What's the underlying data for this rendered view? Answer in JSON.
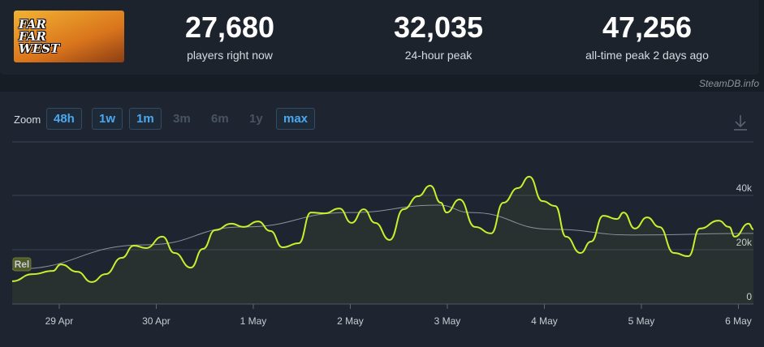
{
  "game_logo": "FAR FAR WEST",
  "stats": [
    {
      "value": "27,680",
      "label": "players right now"
    },
    {
      "value": "32,035",
      "label": "24-hour peak"
    },
    {
      "value": "47,256",
      "label": "all-time peak 2 days ago"
    }
  ],
  "brand": "SteamDB.info",
  "zoom": {
    "label": "Zoom",
    "options": [
      {
        "label": "48h",
        "enabled": true
      },
      {
        "label": "1w",
        "enabled": true
      },
      {
        "label": "1m",
        "enabled": true
      },
      {
        "label": "3m",
        "enabled": false
      },
      {
        "label": "6m",
        "enabled": false
      },
      {
        "label": "1y",
        "enabled": false
      },
      {
        "label": "max",
        "enabled": true
      }
    ]
  },
  "chart_data": {
    "type": "line",
    "xlim": [
      -0.485,
      7.155
    ],
    "ylim": [
      0,
      60000
    ],
    "xticks": [
      {
        "value": 0,
        "label": "29 Apr"
      },
      {
        "value": 1,
        "label": "30 Apr"
      },
      {
        "value": 2,
        "label": "1 May"
      },
      {
        "value": 3,
        "label": "2 May"
      },
      {
        "value": 4,
        "label": "3 May"
      },
      {
        "value": 5,
        "label": "4 May"
      },
      {
        "value": 6,
        "label": "5 May"
      },
      {
        "value": 7,
        "label": "6 May"
      }
    ],
    "yticks": [
      0,
      {
        "value": 20000,
        "label": "20k"
      },
      {
        "value": 40000,
        "label": "40k"
      }
    ],
    "grid": true,
    "annotations": [
      {
        "label": "Rel",
        "x": -0.385
      }
    ],
    "series": [
      {
        "color": "#c8f02c",
        "x": [
          -0.485,
          -0.276,
          -0.067,
          0.017,
          0.184,
          0.335,
          0.477,
          0.644,
          0.77,
          0.895,
          1.063,
          1.188,
          1.356,
          1.481,
          1.607,
          1.774,
          1.9,
          2.05,
          2.176,
          2.301,
          2.469,
          2.594,
          2.736,
          2.887,
          3.013,
          3.138,
          3.255,
          3.406,
          3.548,
          3.699,
          3.824,
          3.933,
          3.992,
          4.126,
          4.285,
          4.452,
          4.577,
          4.728,
          4.845,
          4.979,
          5.113,
          5.222,
          5.372,
          5.481,
          5.607,
          5.749,
          5.816,
          5.933,
          6.059,
          6.184,
          6.335,
          6.485,
          6.603,
          6.795,
          6.904,
          6.962,
          7.105,
          7.155
        ],
        "values": [
          8400,
          11000,
          12200,
          14600,
          11900,
          8100,
          11000,
          17000,
          21500,
          20600,
          24800,
          18800,
          13400,
          20300,
          27200,
          29600,
          28400,
          30400,
          26900,
          20900,
          22400,
          33700,
          33400,
          35200,
          29900,
          34900,
          29900,
          23600,
          34900,
          39700,
          43600,
          37300,
          33700,
          38500,
          28400,
          26000,
          37300,
          42700,
          46900,
          37900,
          36100,
          24800,
          18800,
          23000,
          32500,
          31300,
          33700,
          27800,
          31900,
          28400,
          18800,
          17600,
          27800,
          30700,
          28400,
          24800,
          29600,
          27500
        ]
      },
      {
        "color": "#8a929c",
        "x": [
          -0.485,
          0.895,
          1.9,
          2.987,
          3.908,
          4.243,
          5.08,
          5.916,
          7.155
        ],
        "values": [
          12800,
          21800,
          28400,
          33700,
          36400,
          33700,
          27500,
          25400,
          26000
        ]
      }
    ]
  }
}
